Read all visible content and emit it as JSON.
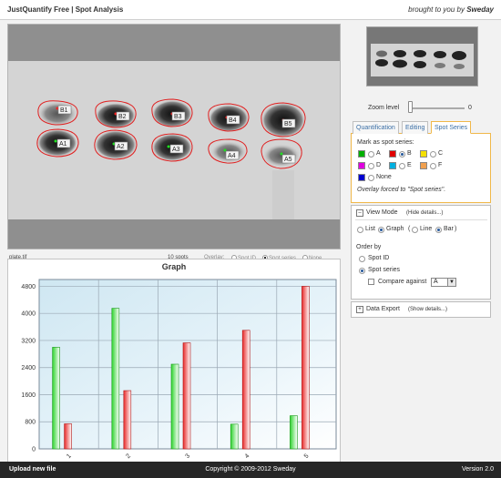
{
  "header": {
    "app_title": "JustQuantify Free  |  Spot Analysis",
    "brought_by_prefix": "brought to you by ",
    "brought_by_brand": "Sweday"
  },
  "image": {
    "spots_top": [
      "B1",
      "B2",
      "B3",
      "B4",
      "B5"
    ],
    "spots_bottom": [
      "A1",
      "A2",
      "A3",
      "A4",
      "A5"
    ]
  },
  "status": {
    "filename": "plate.tif",
    "spot_count": "10 spots",
    "overlay_label": "Overlay:",
    "overlay_options": [
      "Spot ID",
      "Spot series",
      "None"
    ],
    "overlay_selected": "Spot series"
  },
  "graph": {
    "title": "Graph"
  },
  "chart_data": {
    "type": "bar",
    "title": "Graph",
    "categories": [
      "1",
      "2",
      "3",
      "4",
      "5"
    ],
    "series": [
      {
        "values": [
          3000,
          4150,
          2500,
          730,
          980
        ],
        "color": "#2fd42f"
      },
      {
        "values": [
          740,
          1720,
          3130,
          3500,
          4800
        ],
        "color": "#e82a2a"
      }
    ],
    "ylim": [
      0,
      5000
    ],
    "yticks": [
      "0",
      "800",
      "1600",
      "2400",
      "3200",
      "4000",
      "4800"
    ],
    "ytick_values": [
      0,
      800,
      1600,
      2400,
      3200,
      4000,
      4800
    ],
    "grid": true,
    "xlabel": "",
    "ylabel": ""
  },
  "sidebar": {
    "zoom_label": "Zoom level",
    "zoom_value": "0",
    "tabs": [
      "Quantification",
      "Editing",
      "Spot Series"
    ],
    "active_tab": "Spot Series",
    "series_box": {
      "heading": "Mark as spot series:",
      "options": [
        {
          "label": "A",
          "color": "#00b000"
        },
        {
          "label": "B",
          "color": "#e00000"
        },
        {
          "label": "C",
          "color": "#f5e000"
        },
        {
          "label": "D",
          "color": "#e000e0"
        },
        {
          "label": "E",
          "color": "#00b0e0"
        },
        {
          "label": "F",
          "color": "#f0a050"
        },
        {
          "label": "None",
          "color": "#0000d0"
        }
      ],
      "selected": "B",
      "note": "Overlay forced to \"Spot series\"."
    },
    "view_mode": {
      "title": "View Mode",
      "toggle": "(Hide details...)",
      "list_label": "List",
      "graph_label": "Graph",
      "line_label": "Line",
      "bar_label": "Bar",
      "order_by": "Order by",
      "order_options": [
        "Spot ID",
        "Spot series"
      ],
      "compare_label": "Compare against",
      "compare_value": "A"
    },
    "data_export": {
      "title": "Data Export",
      "toggle": "(Show details...)"
    }
  },
  "footer": {
    "upload": "Upload new file",
    "copyright": "Copyright © 2009-2012 Sweday",
    "version": "Version 2.0"
  }
}
